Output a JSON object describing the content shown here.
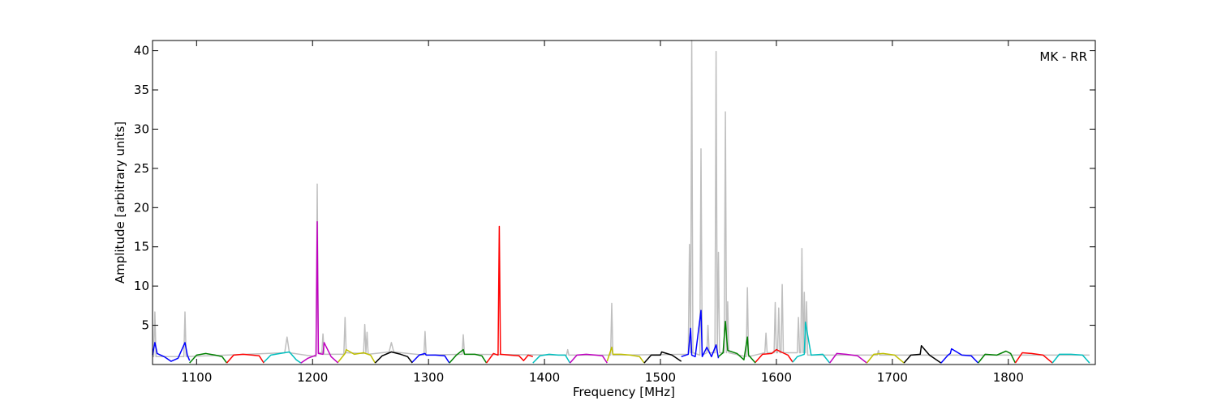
{
  "chart_data": {
    "type": "line",
    "x_label": "Frequency [MHz]",
    "y_label": "Amplitude [arbitrary units]",
    "annotation": "MK - RR",
    "xlim": [
      1062,
      1875
    ],
    "ylim": [
      0,
      41.3
    ],
    "xticks": [
      1100,
      1200,
      1300,
      1400,
      1500,
      1600,
      1700,
      1800
    ],
    "yticks": [
      5,
      10,
      15,
      20,
      25,
      30,
      35,
      40
    ],
    "series": [
      {
        "color": "#bfbfbf",
        "x": [
          1062,
          1063,
          1064,
          1065,
          1089,
          1090,
          1091,
          1176,
          1178,
          1180,
          1203,
          1204,
          1205,
          1208,
          1209,
          1210,
          1227,
          1228,
          1229,
          1244,
          1245,
          1246,
          1247,
          1248,
          1266,
          1268,
          1270,
          1296,
          1297,
          1298,
          1329,
          1330,
          1331,
          1419,
          1420,
          1421,
          1457,
          1458,
          1459,
          1524,
          1525,
          1526,
          1527,
          1528,
          1534,
          1535,
          1536,
          1540,
          1541,
          1542,
          1547,
          1548,
          1549,
          1550,
          1551,
          1555,
          1556,
          1557,
          1558,
          1559,
          1574,
          1575,
          1576,
          1590,
          1591,
          1592,
          1598,
          1599,
          1600,
          1601,
          1602,
          1603,
          1604,
          1605,
          1606,
          1618,
          1619,
          1620,
          1621,
          1622,
          1623,
          1624,
          1625,
          1626,
          1627,
          1687,
          1688,
          1689,
          1870
        ],
        "values": [
          1,
          1,
          6.7,
          1,
          1,
          6.7,
          1,
          1.5,
          3.5,
          1.5,
          1,
          23,
          1.5,
          1.5,
          3.9,
          1.3,
          1.3,
          6.0,
          1.5,
          1.4,
          5.1,
          1.5,
          4.1,
          1.3,
          1.6,
          2.8,
          1.6,
          1.2,
          4.2,
          1.2,
          1.3,
          3.8,
          1.3,
          1.2,
          1.9,
          1.2,
          1.2,
          7.8,
          1.2,
          1.3,
          15.3,
          1.5,
          41.3,
          1.5,
          1.2,
          27.5,
          1.2,
          1.5,
          5.0,
          1.5,
          1.5,
          39.9,
          1.5,
          14.3,
          1.5,
          1.5,
          32.2,
          1.5,
          8.0,
          1.5,
          1,
          9.8,
          1,
          1.5,
          4.0,
          1.5,
          1.5,
          7.9,
          1.5,
          1.5,
          7.2,
          1.5,
          1.5,
          10.2,
          1.5,
          1.5,
          6.0,
          1.5,
          1.5,
          14.8,
          1.5,
          9.2,
          1.5,
          8.0,
          1.2,
          1.2,
          1.8,
          1.2,
          1.2
        ]
      },
      {
        "color": "#0000ff",
        "x": [
          1062,
          1064,
          1066,
          1072,
          1078,
          1084,
          1090,
          1092,
          1094
        ],
        "values": [
          1.2,
          2.8,
          1.4,
          1.0,
          0.4,
          0.8,
          2.8,
          1.2,
          0.5
        ]
      },
      {
        "color": "#008000",
        "x": [
          1094,
          1100,
          1108,
          1116,
          1122,
          1126
        ],
        "values": [
          0.2,
          1.2,
          1.4,
          1.2,
          1.0,
          0.2
        ]
      },
      {
        "color": "#ff0000",
        "x": [
          1126,
          1132,
          1140,
          1148,
          1154,
          1158
        ],
        "values": [
          0.2,
          1.2,
          1.3,
          1.2,
          1.1,
          0.2
        ]
      },
      {
        "color": "#00bfbf",
        "x": [
          1158,
          1164,
          1172,
          1180,
          1186,
          1190
        ],
        "values": [
          0.3,
          1.2,
          1.4,
          1.6,
          0.6,
          0.2
        ]
      },
      {
        "color": "#bf00bf",
        "x": [
          1190,
          1196,
          1203,
          1204,
          1205,
          1209,
          1210,
          1216,
          1222
        ],
        "values": [
          0.2,
          0.8,
          1.2,
          18.2,
          1.4,
          1.3,
          2.8,
          1.0,
          0.2
        ]
      },
      {
        "color": "#bfbf00",
        "x": [
          1222,
          1228,
          1229,
          1236,
          1244,
          1250,
          1254
        ],
        "values": [
          0.3,
          1.4,
          1.9,
          1.3,
          1.5,
          1.2,
          0.2
        ]
      },
      {
        "color": "#000000",
        "x": [
          1254,
          1260,
          1268,
          1276,
          1282,
          1286
        ],
        "values": [
          0.2,
          1.1,
          1.6,
          1.3,
          1.0,
          0.2
        ]
      },
      {
        "color": "#0000ff",
        "x": [
          1286,
          1292,
          1297,
          1298,
          1306,
          1314,
          1318
        ],
        "values": [
          0.3,
          1.2,
          1.4,
          1.2,
          1.2,
          1.1,
          0.2
        ]
      },
      {
        "color": "#008000",
        "x": [
          1318,
          1324,
          1330,
          1331,
          1340,
          1346,
          1350
        ],
        "values": [
          0.2,
          1.2,
          1.9,
          1.3,
          1.3,
          1.1,
          0.2
        ]
      },
      {
        "color": "#ff0000",
        "x": [
          1350,
          1356,
          1360,
          1361,
          1362,
          1370,
          1378,
          1382,
          1386,
          1390
        ],
        "values": [
          0.2,
          1.4,
          1.2,
          17.6,
          1.3,
          1.2,
          1.1,
          0.5,
          1.2,
          1.0
        ]
      },
      {
        "color": "#00bfbf",
        "x": [
          1390,
          1396,
          1404,
          1412,
          1418,
          1422
        ],
        "values": [
          0.2,
          1.1,
          1.3,
          1.2,
          1.2,
          0.2
        ]
      },
      {
        "color": "#bf00bf",
        "x": [
          1422,
          1428,
          1436,
          1444,
          1450,
          1454
        ],
        "values": [
          0.2,
          1.2,
          1.3,
          1.2,
          1.1,
          0.2
        ]
      },
      {
        "color": "#bfbf00",
        "x": [
          1454,
          1458,
          1459,
          1466,
          1474,
          1482,
          1486
        ],
        "values": [
          0.4,
          2.2,
          1.3,
          1.3,
          1.2,
          1.0,
          0.2
        ]
      },
      {
        "color": "#000000",
        "x": [
          1486,
          1492,
          1500,
          1501,
          1510,
          1518
        ],
        "values": [
          0.2,
          1.2,
          1.2,
          1.6,
          1.2,
          0.4
        ]
      },
      {
        "color": "#0000ff",
        "x": [
          1518,
          1524,
          1526,
          1527,
          1530,
          1535,
          1536,
          1540,
          1544,
          1548,
          1550
        ],
        "values": [
          1.0,
          1.3,
          4.6,
          1.2,
          1.0,
          6.9,
          1.0,
          2.2,
          1.0,
          2.5,
          0.8
        ]
      },
      {
        "color": "#008000",
        "x": [
          1550,
          1554,
          1556,
          1558,
          1566,
          1572,
          1575,
          1576,
          1582
        ],
        "values": [
          1.0,
          1.5,
          5.5,
          1.8,
          1.4,
          0.6,
          3.5,
          1.2,
          0.2
        ]
      },
      {
        "color": "#ff0000",
        "x": [
          1582,
          1588,
          1596,
          1600,
          1604,
          1610,
          1614
        ],
        "values": [
          0.3,
          1.3,
          1.4,
          1.9,
          1.6,
          1.2,
          0.3
        ]
      },
      {
        "color": "#00bfbf",
        "x": [
          1614,
          1618,
          1624,
          1625,
          1630,
          1640,
          1646
        ],
        "values": [
          0.3,
          1.0,
          1.3,
          5.4,
          1.2,
          1.3,
          0.2
        ]
      },
      {
        "color": "#bf00bf",
        "x": [
          1646,
          1652,
          1660,
          1670,
          1678
        ],
        "values": [
          0.2,
          1.4,
          1.3,
          1.1,
          0.2
        ]
      },
      {
        "color": "#bfbf00",
        "x": [
          1678,
          1684,
          1692,
          1702,
          1710
        ],
        "values": [
          0.2,
          1.3,
          1.4,
          1.2,
          0.2
        ]
      },
      {
        "color": "#000000",
        "x": [
          1710,
          1716,
          1724,
          1725,
          1732,
          1742
        ],
        "values": [
          0.2,
          1.2,
          1.3,
          2.4,
          1.2,
          0.2
        ]
      },
      {
        "color": "#0000ff",
        "x": [
          1742,
          1748,
          1750,
          1751,
          1760,
          1768,
          1774
        ],
        "values": [
          0.2,
          1.2,
          1.4,
          2.0,
          1.2,
          1.1,
          0.2
        ]
      },
      {
        "color": "#008000",
        "x": [
          1774,
          1780,
          1790,
          1798,
          1802,
          1806
        ],
        "values": [
          0.2,
          1.3,
          1.2,
          1.7,
          1.4,
          0.2
        ]
      },
      {
        "color": "#ff0000",
        "x": [
          1806,
          1812,
          1820,
          1830,
          1838
        ],
        "values": [
          0.2,
          1.5,
          1.4,
          1.2,
          0.2
        ]
      },
      {
        "color": "#00bfbf",
        "x": [
          1838,
          1844,
          1854,
          1864,
          1870
        ],
        "values": [
          0.2,
          1.3,
          1.3,
          1.2,
          0.2
        ]
      }
    ]
  }
}
